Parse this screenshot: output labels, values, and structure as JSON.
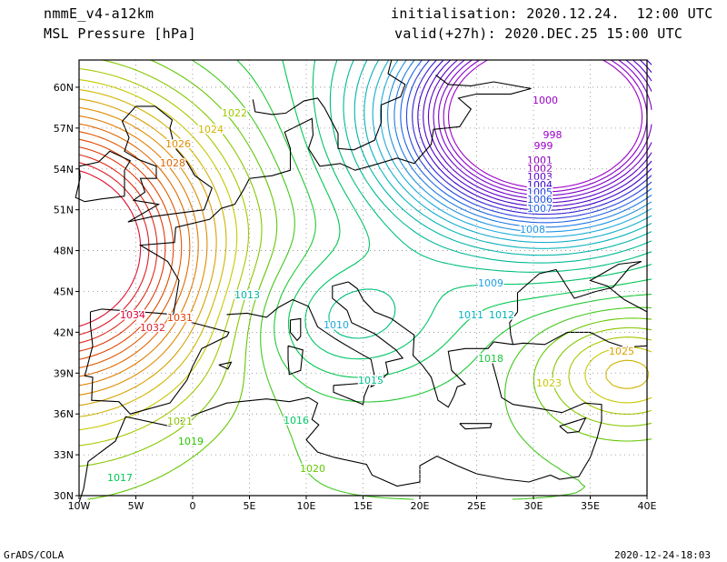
{
  "header": {
    "model": "nmmE_v4-a12km",
    "field": "MSL Pressure [hPa]",
    "init": "initialisation: 2020.12.24.  12:00 UTC",
    "valid": "valid(+27h): 2020.DEC.25 15:00 UTC"
  },
  "footer": {
    "left": "GrADS/COLA",
    "right": "2020-12-24-18:03"
  },
  "axes": {
    "lon_ticks": [
      "10W",
      "5W",
      "0",
      "5E",
      "10E",
      "15E",
      "20E",
      "25E",
      "30E",
      "35E",
      "40E"
    ],
    "lat_ticks": [
      "60N",
      "57N",
      "54N",
      "51N",
      "48N",
      "45N",
      "42N",
      "39N",
      "36N",
      "33N",
      "30N"
    ]
  },
  "colors": {
    "coast": "#000000",
    "grid": "#888888",
    "low": "#9b00c8",
    "mid": "#00b4c8",
    "high": "#e0a000",
    "very_high": "#e0003c"
  },
  "contour_labels": [
    {
      "text": "998",
      "color": "#9b00c8"
    },
    {
      "text": "999",
      "color": "#9b00c8"
    },
    {
      "text": "1000",
      "color": "#9b00c8"
    },
    {
      "text": "1001",
      "color": "#8c00b4"
    },
    {
      "text": "1002",
      "color": "#8c00b4"
    },
    {
      "text": "1003",
      "color": "#5a00c8"
    },
    {
      "text": "1004",
      "color": "#3c00c8"
    },
    {
      "text": "1005",
      "color": "#1e3cdc"
    },
    {
      "text": "1006",
      "color": "#1e50dc"
    },
    {
      "text": "1007",
      "color": "#1e64e6"
    },
    {
      "text": "1008",
      "color": "#1e96e6"
    },
    {
      "text": "1009",
      "color": "#1ea0e6"
    },
    {
      "text": "1010",
      "color": "#1eaadc"
    },
    {
      "text": "1011",
      "color": "#00b4c8"
    },
    {
      "text": "1012",
      "color": "#00b4b4"
    },
    {
      "text": "1013",
      "color": "#00b4a0"
    },
    {
      "text": "1015",
      "color": "#00be8c"
    },
    {
      "text": "1016",
      "color": "#00c864"
    },
    {
      "text": "1017",
      "color": "#00c850"
    },
    {
      "text": "1018",
      "color": "#14c83c"
    },
    {
      "text": "1019",
      "color": "#28c800"
    },
    {
      "text": "1020",
      "color": "#64c800"
    },
    {
      "text": "1021",
      "color": "#8cc800"
    },
    {
      "text": "1022",
      "color": "#a0c800"
    },
    {
      "text": "1023",
      "color": "#c8c800"
    },
    {
      "text": "1024",
      "color": "#d2b400"
    },
    {
      "text": "1025",
      "color": "#dca000"
    },
    {
      "text": "1026",
      "color": "#e08c00"
    },
    {
      "text": "1028",
      "color": "#e06400"
    },
    {
      "text": "1031",
      "color": "#e03c00"
    },
    {
      "text": "1032",
      "color": "#e01e28"
    },
    {
      "text": "1034",
      "color": "#e0003c"
    }
  ]
}
